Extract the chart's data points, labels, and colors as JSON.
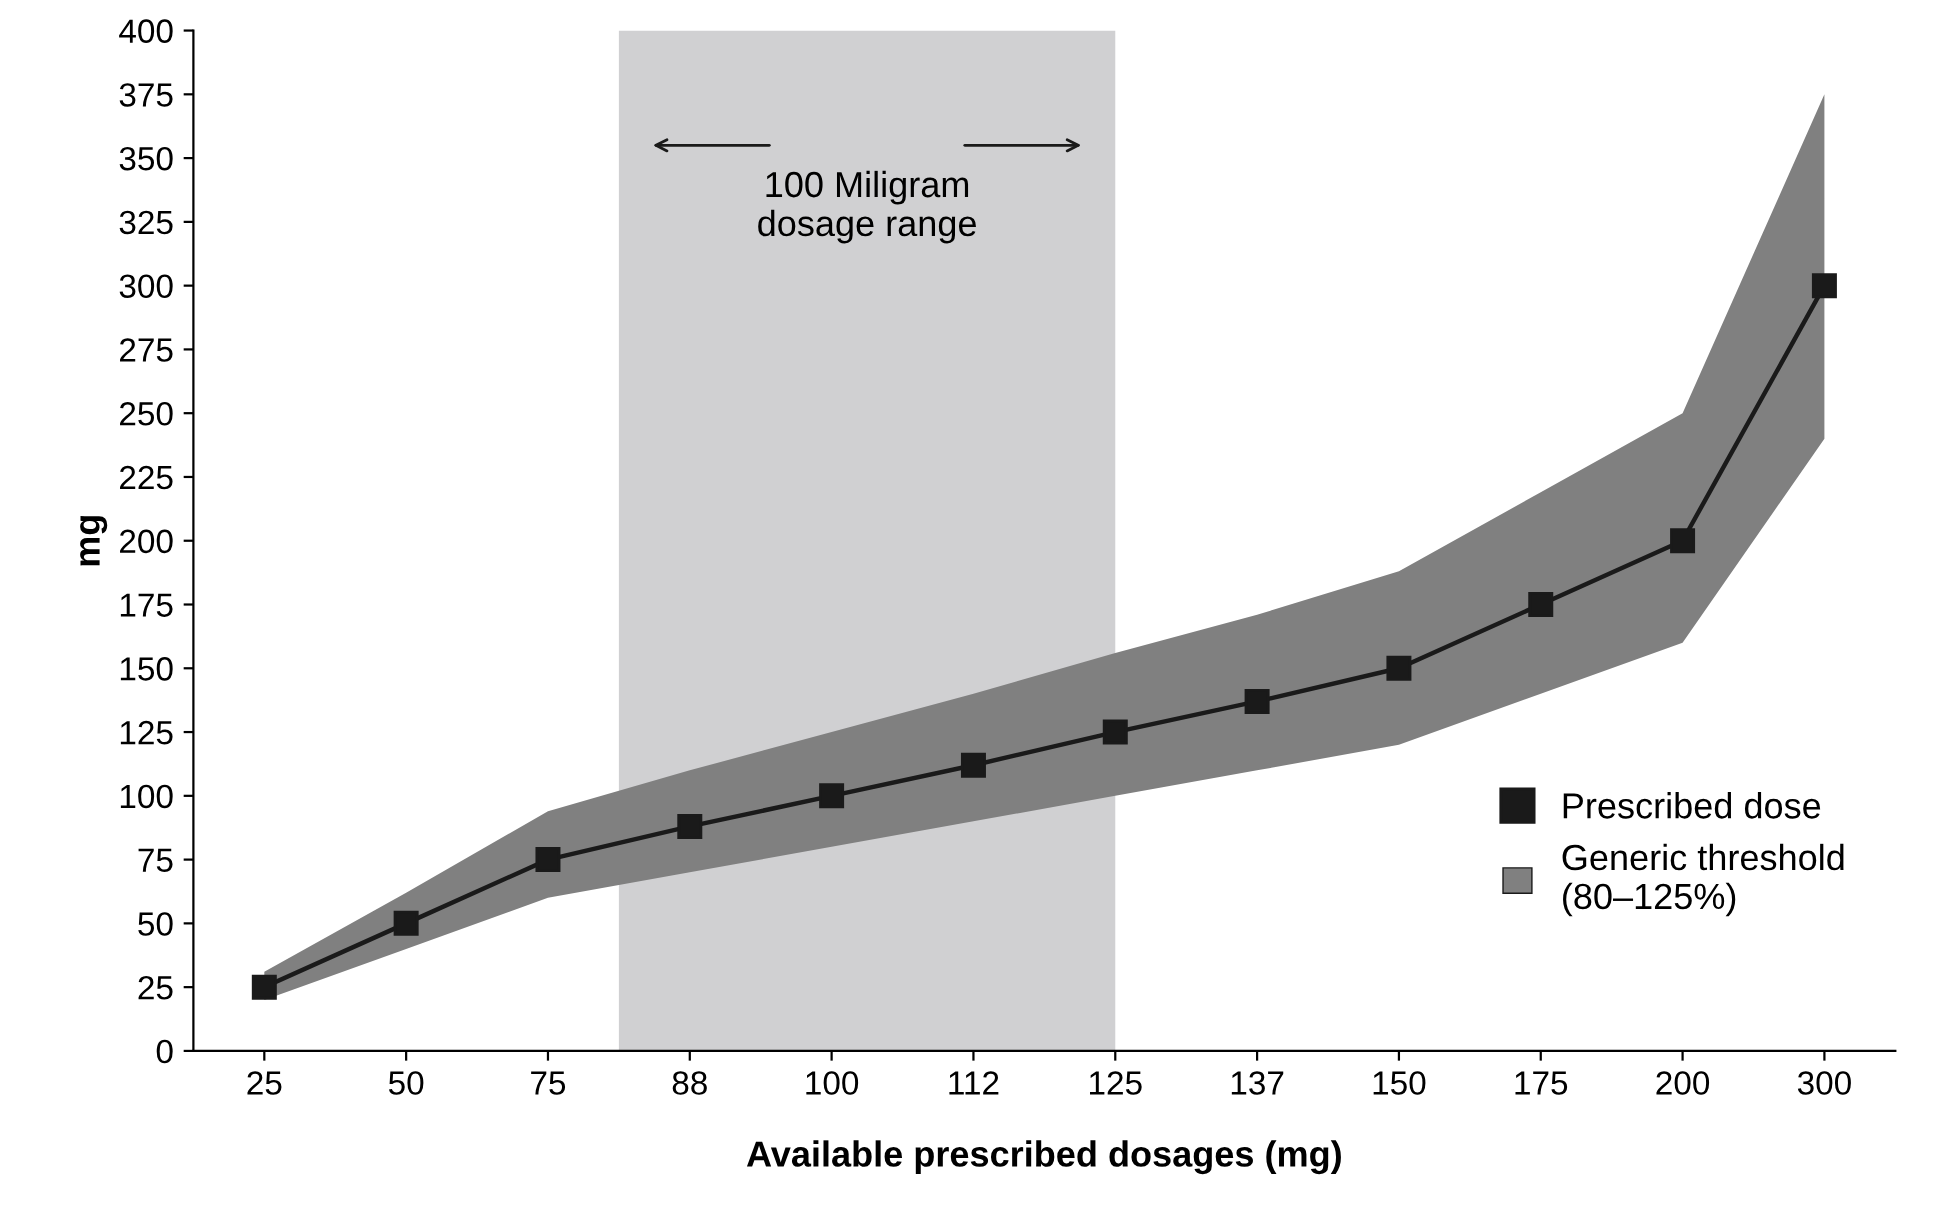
{
  "chart_data": {
    "type": "line",
    "xlabel": "Available prescribed dosages (mg)",
    "ylabel": "mg",
    "categories": [
      "25",
      "50",
      "75",
      "88",
      "100",
      "112",
      "125",
      "137",
      "150",
      "175",
      "200",
      "300"
    ],
    "series": [
      {
        "name": "Prescribed dose",
        "color": "#1a1a1a",
        "marker": "square",
        "values": [
          25,
          50,
          75,
          88,
          100,
          112,
          125,
          137,
          150,
          175,
          200,
          300
        ],
        "lower": [
          20,
          40,
          60,
          70,
          80,
          90,
          100,
          110,
          120,
          140,
          160,
          240
        ],
        "upper": [
          31,
          62,
          94,
          110,
          125,
          140,
          156,
          171,
          188,
          219,
          250,
          375
        ]
      }
    ],
    "bands": [
      {
        "axis": "x",
        "from": "88",
        "to": "125",
        "label": "100 Miligram\ndosage range",
        "color": "#d0d0d2"
      }
    ],
    "annotations": [
      "Generic threshold\n(80–125%)"
    ],
    "ylim": [
      0,
      400
    ],
    "yticks": [
      0,
      25,
      50,
      75,
      100,
      125,
      150,
      175,
      200,
      225,
      250,
      275,
      300,
      325,
      350,
      375,
      400
    ],
    "grid": false,
    "legend": "bottom right"
  }
}
